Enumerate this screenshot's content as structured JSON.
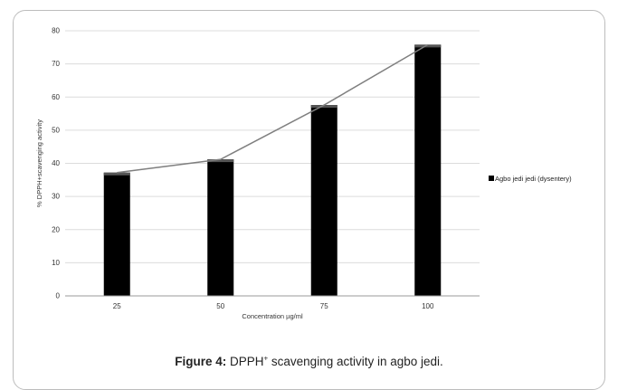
{
  "chart_data": {
    "type": "bar",
    "categories": [
      "25",
      "50",
      "75",
      "100"
    ],
    "series": [
      {
        "name": "Agbo jedi jedi (dysentery)",
        "values": [
          37.2,
          41.2,
          57.6,
          75.8
        ],
        "color": "#000000"
      }
    ],
    "overlay_line": true,
    "line_color": "#7f7f7f",
    "xlabel": "Concentration µg/ml",
    "ylabel": "% DPPH+scavenging activity",
    "ylim": [
      0,
      80
    ],
    "yticks": [
      0,
      10,
      20,
      30,
      40,
      50,
      60,
      70,
      80
    ],
    "grid": "horizontal",
    "legend": "right"
  },
  "caption": {
    "label": "Figure 4:",
    "text_before": " DPPH",
    "superscript": "+",
    "text_after": " scavenging activity in agbo jedi."
  }
}
